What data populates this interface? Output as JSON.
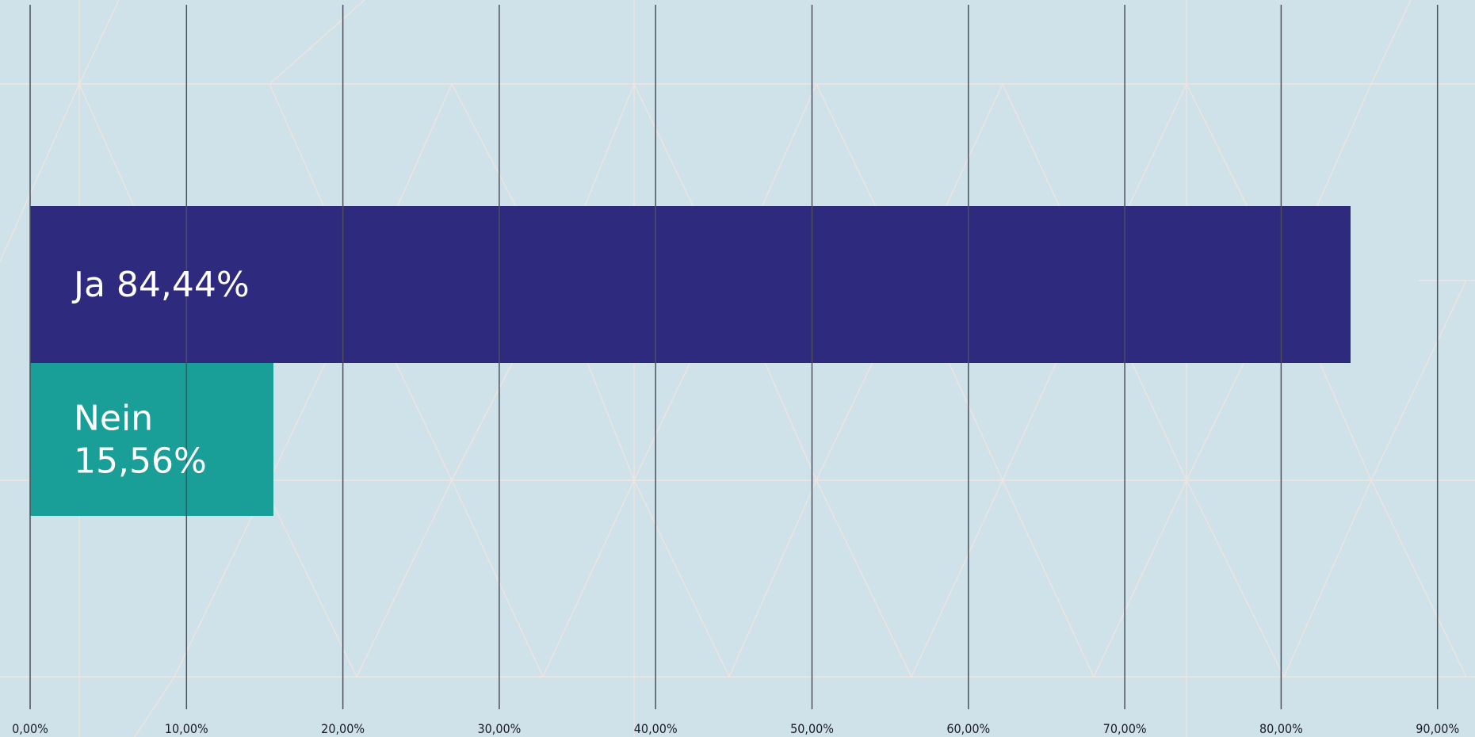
{
  "chart_data": {
    "type": "bar",
    "orientation": "horizontal",
    "title": "",
    "xlabel": "",
    "ylabel": "",
    "xlim": [
      0,
      92
    ],
    "grid": true,
    "legend": "none",
    "categories": [
      "Ja",
      "Nein"
    ],
    "values": [
      84.44,
      15.56
    ],
    "data_labels": [
      [
        "Ja 84,44%"
      ],
      [
        "Nein",
        "15,56%"
      ]
    ],
    "colors": [
      "#2e2a7e",
      "#1a9e98"
    ],
    "x_ticks": [
      {
        "value": 0,
        "label": "0,00%"
      },
      {
        "value": 10,
        "label": "10,00%"
      },
      {
        "value": 20,
        "label": "20,00%"
      },
      {
        "value": 30,
        "label": "30,00%"
      },
      {
        "value": 40,
        "label": "40,00%"
      },
      {
        "value": 50,
        "label": "50,00%"
      },
      {
        "value": 60,
        "label": "60,00%"
      },
      {
        "value": 70,
        "label": "70,00%"
      },
      {
        "value": 80,
        "label": "80,00%"
      },
      {
        "value": 90,
        "label": "90,00%"
      }
    ]
  },
  "colors": {
    "background": "#cfe2ea",
    "pattern_lines": "#efe4df",
    "gridlines": "#4d4f5f",
    "label_text": "#ffffff",
    "tick_text": "#1a1a2a"
  }
}
